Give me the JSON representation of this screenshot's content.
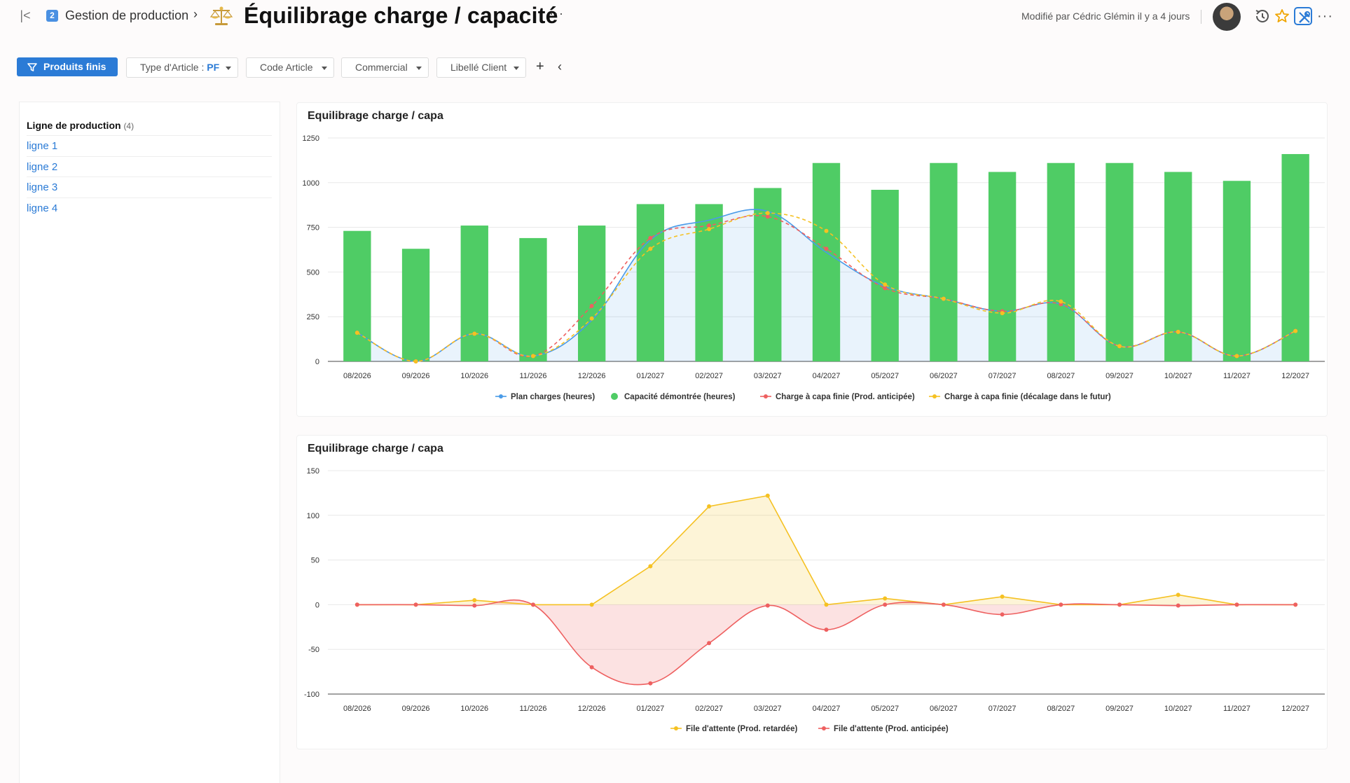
{
  "header": {
    "breadcrumb_badge": "2",
    "breadcrumb_label": "Gestion de production",
    "title": "Équilibrage charge / capacité",
    "modified": "Modifié par Cédric Glémin il y a 4 jours",
    "icons": [
      "collapse-icon",
      "scale-icon",
      "more-icon",
      "history-icon",
      "star-icon",
      "tools-icon",
      "dots-icon"
    ]
  },
  "filters": {
    "primary_label": "Produits finis",
    "chips": [
      {
        "label": "Type d'Article : ",
        "value": "PF"
      },
      {
        "label": "Code Article",
        "value": ""
      },
      {
        "label": "Commercial",
        "value": ""
      },
      {
        "label": "Libellé Client",
        "value": ""
      }
    ]
  },
  "sidebar": {
    "heading": "Ligne de production",
    "count": "(4)",
    "items": [
      "ligne 1",
      "ligne 2",
      "ligne 3",
      "ligne 4"
    ]
  },
  "colors": {
    "accent": "#2b7bd6",
    "green": "#4fcc65",
    "blue_line": "#4a9be8",
    "red": "#ee6060",
    "yellow": "#f5c122"
  },
  "chart_data": [
    {
      "type": "bar",
      "title": "Equilibrage charge / capa",
      "categories": [
        "08/2026",
        "09/2026",
        "10/2026",
        "11/2026",
        "12/2026",
        "01/2027",
        "02/2027",
        "03/2027",
        "04/2027",
        "05/2027",
        "06/2027",
        "07/2027",
        "08/2027",
        "09/2027",
        "10/2027",
        "11/2027",
        "12/2027"
      ],
      "ylim": [
        0,
        1250
      ],
      "yticks": [
        "0",
        "250",
        "500",
        "750",
        "1000",
        "1250"
      ],
      "grid": true,
      "legend": "bottom",
      "series": [
        {
          "name": "Plan charges (heures)",
          "kind": "area-line",
          "color": "#4a9be8",
          "values": [
            160,
            0,
            155,
            30,
            230,
            680,
            790,
            840,
            610,
            420,
            350,
            280,
            320,
            85,
            165,
            30,
            170
          ]
        },
        {
          "name": "Capacité démontrée (heures)",
          "kind": "bar",
          "color": "#4fcc65",
          "values": [
            730,
            630,
            760,
            690,
            760,
            880,
            880,
            970,
            1110,
            960,
            1110,
            1060,
            1110,
            1110,
            1060,
            1010,
            1160
          ]
        },
        {
          "name": "Charge à capa finie (Prod. anticipée)",
          "kind": "dashed-line",
          "color": "#ee6060",
          "values": [
            160,
            0,
            155,
            30,
            310,
            690,
            760,
            810,
            630,
            410,
            350,
            280,
            320,
            85,
            165,
            30,
            170
          ]
        },
        {
          "name": "Charge à capa finie (décalage dans le futur)",
          "kind": "dashed-line",
          "color": "#f5c122",
          "values": [
            160,
            0,
            155,
            30,
            240,
            630,
            740,
            830,
            730,
            430,
            350,
            270,
            335,
            85,
            165,
            30,
            170
          ]
        }
      ]
    },
    {
      "type": "line",
      "title": "Equilibrage charge / capa",
      "categories": [
        "08/2026",
        "09/2026",
        "10/2026",
        "11/2026",
        "12/2026",
        "01/2027",
        "02/2027",
        "03/2027",
        "04/2027",
        "05/2027",
        "06/2027",
        "07/2027",
        "08/2027",
        "09/2027",
        "10/2027",
        "11/2027",
        "12/2027"
      ],
      "ylim": [
        -100,
        150
      ],
      "yticks": [
        "-100",
        "-50",
        "0",
        "50",
        "100",
        "150"
      ],
      "grid": true,
      "legend": "bottom",
      "series": [
        {
          "name": "File d'attente (Prod. retardée)",
          "color": "#f5c122",
          "smooth": false,
          "values": [
            0,
            0,
            5,
            0,
            0,
            43,
            110,
            122,
            0,
            7,
            0,
            9,
            0,
            0,
            11,
            0,
            0
          ]
        },
        {
          "name": "File d'attente (Prod. anticipée)",
          "color": "#ee6060",
          "smooth": true,
          "values": [
            0,
            0,
            -1,
            0,
            -70,
            -88,
            -43,
            -1,
            -28,
            0,
            0,
            -11,
            0,
            0,
            -1,
            0,
            0
          ]
        }
      ]
    }
  ]
}
